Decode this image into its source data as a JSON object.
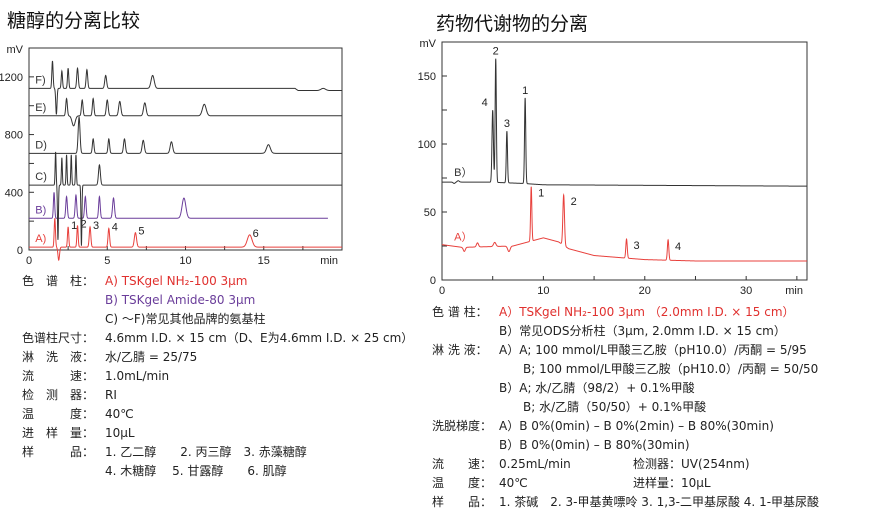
{
  "left": {
    "title": "糖醇的分离比较",
    "chart_data": {
      "type": "line",
      "xlabel": "min",
      "ylabel": "mV",
      "xlim": [
        0,
        20
      ],
      "ylim": [
        0,
        1400
      ],
      "xticks": [
        "0",
        "5",
        "10",
        "15"
      ],
      "yticks": [
        "0",
        "400",
        "800",
        "1200"
      ],
      "series": [
        {
          "name": "A)",
          "color": "#e8403c",
          "baseline": [
            [
              0,
              20
            ],
            [
              20,
              20
            ]
          ],
          "xend": 20,
          "peaks": [
            [
              1.65,
              200,
              0.04,
              ""
            ],
            [
              1.9,
              -90,
              0.05,
              ""
            ],
            [
              2.5,
              140,
              0.04,
              "1"
            ],
            [
              3.1,
              150,
              0.04,
              "2"
            ],
            [
              3.9,
              140,
              0.05,
              "3"
            ],
            [
              5.1,
              130,
              0.05,
              "4"
            ],
            [
              6.8,
              100,
              0.07,
              "5"
            ],
            [
              14.1,
              85,
              0.15,
              "6"
            ]
          ]
        },
        {
          "name": "B)",
          "color": "#6a3d9a",
          "baseline": [
            [
              0,
              220
            ],
            [
              19.1,
              220
            ]
          ],
          "xend": 19.1,
          "peaks": [
            [
              1.6,
              180,
              0.04,
              ""
            ],
            [
              2.4,
              150,
              0.05,
              ""
            ],
            [
              3.0,
              160,
              0.05,
              ""
            ],
            [
              3.6,
              150,
              0.05,
              ""
            ],
            [
              4.5,
              150,
              0.05,
              ""
            ],
            [
              5.4,
              140,
              0.06,
              ""
            ],
            [
              9.9,
              140,
              0.12,
              ""
            ]
          ]
        },
        {
          "name": "C)",
          "color": "#333333",
          "baseline": [
            [
              0,
              450
            ],
            [
              20,
              450
            ]
          ],
          "xend": 20,
          "peaks": [
            [
              1.7,
              230,
              0.03,
              ""
            ],
            [
              1.85,
              -380,
              0.03,
              ""
            ],
            [
              2.1,
              190,
              0.03,
              ""
            ],
            [
              2.4,
              210,
              0.03,
              ""
            ],
            [
              2.7,
              210,
              0.03,
              ""
            ],
            [
              3.0,
              210,
              0.03,
              ""
            ],
            [
              3.35,
              -420,
              0.03,
              ""
            ],
            [
              4.5,
              140,
              0.06,
              ""
            ]
          ]
        },
        {
          "name": "D)",
          "color": "#333333",
          "baseline": [
            [
              0,
              670
            ],
            [
              20,
              670
            ]
          ],
          "xend": 20,
          "peaks": [
            [
              3.2,
              250,
              0.06,
              ""
            ],
            [
              4.1,
              100,
              0.05,
              ""
            ],
            [
              5.1,
              100,
              0.05,
              ""
            ],
            [
              6.1,
              100,
              0.06,
              ""
            ],
            [
              7.3,
              90,
              0.07,
              ""
            ],
            [
              9.1,
              80,
              0.08,
              ""
            ],
            [
              15.3,
              60,
              0.12,
              ""
            ]
          ]
        },
        {
          "name": "E)",
          "color": "#333333",
          "baseline": [
            [
              0,
              930
            ],
            [
              20,
              930
            ]
          ],
          "xend": 20,
          "peaks": [
            [
              2.4,
              120,
              0.05,
              ""
            ],
            [
              2.85,
              -70,
              0.1,
              ""
            ],
            [
              3.4,
              110,
              0.05,
              ""
            ],
            [
              4.1,
              120,
              0.05,
              ""
            ],
            [
              5.0,
              110,
              0.06,
              ""
            ],
            [
              5.8,
              100,
              0.07,
              ""
            ],
            [
              7.4,
              90,
              0.08,
              ""
            ],
            [
              11.2,
              80,
              0.12,
              ""
            ]
          ]
        },
        {
          "name": "F)",
          "color": "#333333",
          "baseline": [
            [
              0,
              1120
            ],
            [
              17,
              1120
            ],
            [
              17.2,
              1105
            ],
            [
              20,
              1105
            ]
          ],
          "xend": 20,
          "peaks": [
            [
              1.5,
              190,
              0.04,
              ""
            ],
            [
              1.75,
              -180,
              0.04,
              ""
            ],
            [
              2.1,
              120,
              0.04,
              ""
            ],
            [
              2.5,
              140,
              0.04,
              ""
            ],
            [
              3.1,
              140,
              0.05,
              ""
            ],
            [
              3.7,
              130,
              0.05,
              ""
            ],
            [
              4.9,
              90,
              0.06,
              ""
            ],
            [
              7.9,
              90,
              0.1,
              ""
            ],
            [
              18.8,
              15,
              0.15,
              ""
            ]
          ]
        }
      ]
    },
    "info": [
      {
        "label": "色　谱　柱：",
        "lines": [
          {
            "text": "A) TSKgel NH₂-100 3μm",
            "color": "red"
          },
          {
            "text": "B) TSKgel Amide-80 3μm",
            "color": "purple"
          },
          {
            "text": "C) ～F)常见其他品牌的氨基柱",
            "color": ""
          }
        ]
      },
      {
        "label": "色谱柱尺寸：",
        "lines": [
          {
            "text": "4.6mm I.D. × 15 cm（D、E为4.6mm I.D. × 25 cm）",
            "color": ""
          }
        ]
      },
      {
        "label": "淋　洗　液：",
        "lines": [
          {
            "text": "水/乙腈 = 25/75",
            "color": ""
          }
        ]
      },
      {
        "label": "流　　　速：",
        "lines": [
          {
            "text": "1.0mL/min",
            "color": ""
          }
        ]
      },
      {
        "label": "检　测　器：",
        "lines": [
          {
            "text": "RI",
            "color": ""
          }
        ]
      },
      {
        "label": "温　　　度：",
        "lines": [
          {
            "text": "40℃",
            "color": ""
          }
        ]
      },
      {
        "label": "进　样　量：",
        "lines": [
          {
            "text": "10μL",
            "color": ""
          }
        ]
      },
      {
        "label": "样　　　品：",
        "lines": [
          {
            "text": "1. 乙二醇　　2. 丙三醇　3. 赤藻糖醇",
            "color": ""
          },
          {
            "text": "4. 木糖醇　 5. 甘露醇　　6. 肌醇",
            "color": ""
          }
        ]
      }
    ]
  },
  "right": {
    "title": "药物代谢物的分离",
    "chart_data": {
      "type": "line",
      "xlabel": "min",
      "ylabel": "mV",
      "xlim": [
        0,
        36
      ],
      "ylim": [
        0,
        175
      ],
      "xticks": [
        "0",
        "10",
        "20",
        "30"
      ],
      "yticks": [
        "0",
        "50",
        "100",
        "150"
      ],
      "series": [
        {
          "name": "B）",
          "color": "#333333",
          "baseline": [
            [
              0,
              72
            ],
            [
              4.5,
              72
            ],
            [
              8,
              71
            ],
            [
              10,
              70
            ],
            [
              36,
              69
            ]
          ],
          "xend": 36,
          "peaks": [
            [
              1.2,
              -1,
              0.1,
              ""
            ],
            [
              1.6,
              1,
              0.1,
              ""
            ],
            [
              5.0,
              53,
              0.07,
              "4"
            ],
            [
              5.3,
              91,
              0.06,
              "2"
            ],
            [
              6.4,
              38,
              0.06,
              "3"
            ],
            [
              8.2,
              63,
              0.06,
              "1"
            ]
          ]
        },
        {
          "name": "A）",
          "color": "#e8403c",
          "baseline": [
            [
              0,
              26
            ],
            [
              2,
              24
            ],
            [
              7,
              25
            ],
            [
              8.5,
              28
            ],
            [
              10,
              31
            ],
            [
              11.5,
              28
            ],
            [
              12.5,
              23
            ],
            [
              15,
              18
            ],
            [
              20,
              15
            ],
            [
              25,
              14
            ],
            [
              36,
              14
            ]
          ],
          "xend": 36,
          "peaks": [
            [
              2.2,
              -3,
              0.1,
              ""
            ],
            [
              3.5,
              3,
              0.1,
              ""
            ],
            [
              5.2,
              3,
              0.12,
              ""
            ],
            [
              6.6,
              -4,
              0.12,
              ""
            ],
            [
              8.8,
              40,
              0.06,
              "1"
            ],
            [
              12.0,
              37,
              0.08,
              "2"
            ],
            [
              18.2,
              14,
              0.07,
              "3"
            ],
            [
              22.3,
              15,
              0.07,
              "4"
            ]
          ]
        }
      ]
    },
    "info": [
      {
        "label": "色 谱 柱：",
        "lines": [
          {
            "text": "A）TSKgel NH₂-100 3μm （2.0mm I.D. × 15 cm）",
            "color": "red"
          },
          {
            "text": "B）常见ODS分析柱（3μm, 2.0mm I.D. × 15 cm）",
            "color": ""
          }
        ]
      },
      {
        "label": "淋 洗 液：",
        "lines": [
          {
            "text": "A）A; 100 mmol/L甲酸三乙胺（pH10.0）/丙酮 = 5/95",
            "color": ""
          },
          {
            "text": "　　B; 100 mmol/L甲酸三乙胺（pH10.0）/丙酮 = 50/50",
            "color": ""
          },
          {
            "text": "B）A; 水/乙腈（98/2）+ 0.1%甲酸",
            "color": ""
          },
          {
            "text": "　　B; 水/乙腈（50/50）+ 0.1%甲酸",
            "color": ""
          }
        ]
      },
      {
        "label": "洗脱梯度：",
        "lines": [
          {
            "text": "A）B 0%(0min) – B 0%(2min) – B 80%(30min)",
            "color": ""
          },
          {
            "text": "B）B 0%(0min) – B 80%(30min)",
            "color": ""
          }
        ]
      },
      {
        "label": "流　　速：",
        "lines": [
          {
            "text": "0.25mL/min",
            "color": "",
            "extra_label": "检测器：",
            "extra": "UV(254nm)"
          }
        ]
      },
      {
        "label": "温　　度：",
        "lines": [
          {
            "text": "40℃",
            "color": "",
            "extra_label": "进样量：",
            "extra": "10μL"
          }
        ]
      },
      {
        "label": "样　　品：",
        "lines": [
          {
            "text": "1. 茶碱　2. 3-甲基黄嘌呤  3. 1,3-二甲基尿酸  4. 1-甲基尿酸",
            "color": ""
          }
        ]
      }
    ]
  }
}
